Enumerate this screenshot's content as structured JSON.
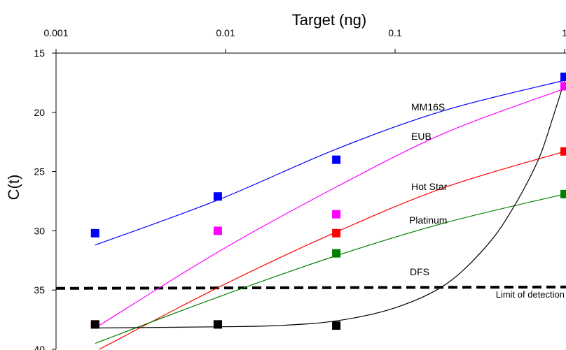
{
  "chart_data": {
    "type": "scatter",
    "title": "",
    "xlabel": "Target (ng)",
    "ylabel": "C(t)",
    "x_scale": "log",
    "xlim": [
      0.001,
      1
    ],
    "ylim": [
      15,
      40
    ],
    "y_inverted": true,
    "x_axis_position": "top",
    "grid": false,
    "x_tick_values": [
      0.001,
      0.01,
      0.1,
      1
    ],
    "x_tick_labels": [
      "0.001",
      "0.01",
      "0.1",
      "1"
    ],
    "y_tick_values": [
      15,
      20,
      25,
      30,
      35,
      40
    ],
    "y_tick_labels": [
      "15",
      "20",
      "25",
      "30",
      "35",
      "40"
    ],
    "series": [
      {
        "name": "MM16S",
        "color": "#0000ff",
        "points": [
          [
            0.0017,
            30.2
          ],
          [
            0.009,
            27.1
          ],
          [
            0.045,
            24.0
          ],
          [
            1.0,
            17.0
          ]
        ],
        "fit": [
          [
            0.0017,
            31.2
          ],
          [
            0.009,
            27.4
          ],
          [
            0.045,
            23.1
          ],
          [
            0.2,
            19.8
          ],
          [
            1.0,
            17.3
          ]
        ]
      },
      {
        "name": "EUB",
        "color": "#ff00ff",
        "points": [
          [
            0.009,
            30.0
          ],
          [
            0.045,
            28.6
          ],
          [
            1.0,
            17.8
          ]
        ],
        "fit": [
          [
            0.0017,
            38.2
          ],
          [
            0.009,
            31.8
          ],
          [
            0.045,
            26.3
          ],
          [
            0.2,
            21.7
          ],
          [
            1.0,
            18.0
          ]
        ]
      },
      {
        "name": "Hot Star",
        "color": "#ff0000",
        "points": [
          [
            0.0017,
            37.9
          ],
          [
            0.009,
            37.9
          ],
          [
            0.045,
            30.2
          ],
          [
            1.0,
            23.3
          ]
        ],
        "fit": [
          [
            0.0018,
            40.0
          ],
          [
            0.009,
            34.8
          ],
          [
            0.045,
            30.1
          ],
          [
            0.2,
            26.3
          ],
          [
            1.0,
            23.3
          ]
        ]
      },
      {
        "name": "Platinum",
        "color": "#008000",
        "points": [
          [
            0.045,
            31.9
          ],
          [
            1.0,
            26.9
          ]
        ],
        "fit": [
          [
            0.0017,
            39.5
          ],
          [
            0.009,
            35.6
          ],
          [
            0.045,
            32.1
          ],
          [
            0.2,
            29.3
          ],
          [
            1.0,
            26.9
          ]
        ]
      },
      {
        "name": "DFS",
        "color": "#000000",
        "points": [
          [
            0.0017,
            37.9
          ],
          [
            0.009,
            37.9
          ],
          [
            0.045,
            38.0
          ]
        ],
        "fit": [
          [
            0.0017,
            38.2
          ],
          [
            0.009,
            38.1
          ],
          [
            0.02,
            38.0
          ],
          [
            0.045,
            37.6
          ],
          [
            0.1,
            36.5
          ],
          [
            0.2,
            34.5
          ],
          [
            0.35,
            31.2
          ],
          [
            0.5,
            28.0
          ],
          [
            0.7,
            24.0
          ],
          [
            0.85,
            20.5
          ],
          [
            1.0,
            17.3
          ]
        ]
      }
    ],
    "annotations": {
      "limit_of_detection": {
        "text": "Limit of detection",
        "y": 34.8,
        "style": "dashed",
        "color": "#000000"
      }
    }
  }
}
